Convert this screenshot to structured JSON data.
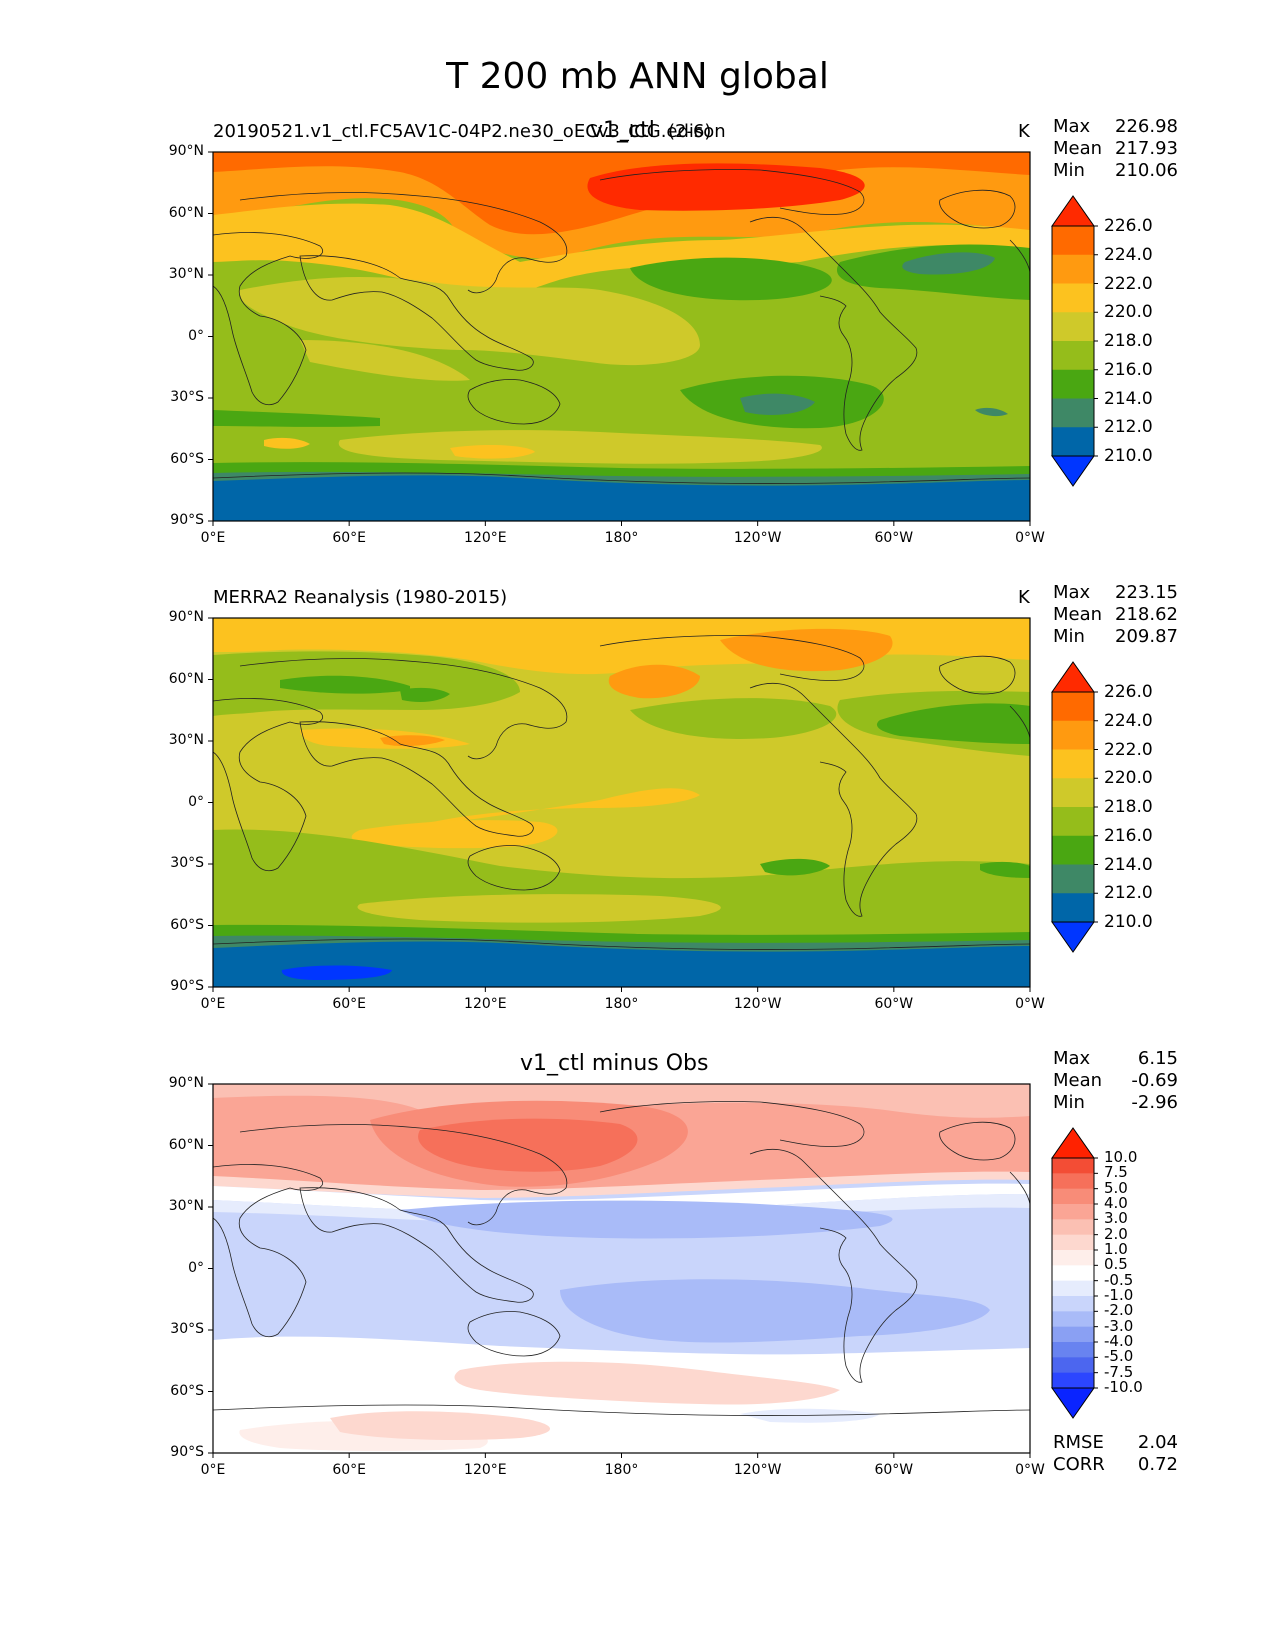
{
  "figure": {
    "title": "T 200 mb ANN global"
  },
  "chart_data": [
    {
      "type": "contour_map",
      "title_left": "20190521.v1_ctl.FC5AV1C-04P2.ne30_oECv3_ICG.edison",
      "title_center": "v1_ctl",
      "title_right": "(2-6)",
      "units": "K",
      "stats": {
        "max_label": "Max",
        "max": "226.98",
        "mean_label": "Mean",
        "mean": "217.93",
        "min_label": "Min",
        "min": "210.06"
      },
      "xticks": [
        "0°E",
        "60°E",
        "120°E",
        "180°",
        "120°W",
        "60°W",
        "0°W"
      ],
      "yticks": [
        "90°N",
        "60°N",
        "30°N",
        "0°",
        "30°S",
        "60°S",
        "90°S"
      ],
      "colorbar": {
        "levels": [
          "226.0",
          "224.0",
          "222.0",
          "220.0",
          "218.0",
          "216.0",
          "214.0",
          "212.0",
          "210.0"
        ],
        "colors": [
          "#ff2a00",
          "#ff6a00",
          "#ff9a10",
          "#fcc21f",
          "#cfc92a",
          "#95bd1b",
          "#4aa712",
          "#3e8866",
          "#0066a8",
          "#0036ff"
        ]
      }
    },
    {
      "type": "contour_map",
      "title_left": "MERRA2 Reanalysis (1980-2015)",
      "units": "K",
      "stats": {
        "max_label": "Max",
        "max": "223.15",
        "mean_label": "Mean",
        "mean": "218.62",
        "min_label": "Min",
        "min": "209.87"
      },
      "xticks": [
        "0°E",
        "60°E",
        "120°E",
        "180°",
        "120°W",
        "60°W",
        "0°W"
      ],
      "yticks": [
        "90°N",
        "60°N",
        "30°N",
        "0°",
        "30°S",
        "60°S",
        "90°S"
      ],
      "colorbar": {
        "levels": [
          "226.0",
          "224.0",
          "222.0",
          "220.0",
          "218.0",
          "216.0",
          "214.0",
          "212.0",
          "210.0"
        ],
        "colors": [
          "#ff2a00",
          "#ff6a00",
          "#ff9a10",
          "#fcc21f",
          "#cfc92a",
          "#95bd1b",
          "#4aa712",
          "#3e8866",
          "#0066a8",
          "#0036ff"
        ]
      }
    },
    {
      "type": "contour_map",
      "title_center": "v1_ctl minus Obs",
      "stats": {
        "max_label": "Max",
        "max": "6.15",
        "mean_label": "Mean",
        "mean": "-0.69",
        "min_label": "Min",
        "min": "-2.96",
        "rmse_label": "RMSE",
        "rmse": "2.04",
        "corr_label": "CORR",
        "corr": "0.72"
      },
      "xticks": [
        "0°E",
        "60°E",
        "120°E",
        "180°",
        "120°W",
        "60°W",
        "0°W"
      ],
      "yticks": [
        "90°N",
        "60°N",
        "30°N",
        "0°",
        "30°S",
        "60°S",
        "90°S"
      ],
      "colorbar": {
        "levels": [
          "10.0",
          "7.5",
          "5.0",
          "4.0",
          "3.0",
          "2.0",
          "1.0",
          "0.5",
          "-0.5",
          "-1.0",
          "-2.0",
          "-3.0",
          "-4.0",
          "-5.0",
          "-7.5",
          "-10.0"
        ],
        "colors": [
          "#ff2200",
          "#f34d35",
          "#f6705a",
          "#f88c78",
          "#faa595",
          "#fbc0b3",
          "#fdd8cf",
          "#feeeea",
          "#ffffff",
          "#e6ecfd",
          "#c9d5fb",
          "#a9bbf8",
          "#8aa0f3",
          "#6883f0",
          "#4c66ef",
          "#2c46ff",
          "#0a24ff"
        ]
      }
    }
  ]
}
